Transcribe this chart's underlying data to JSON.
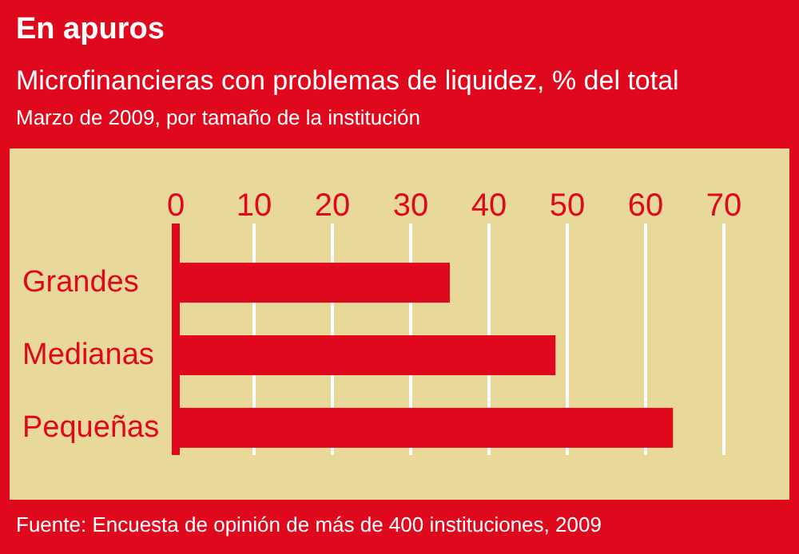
{
  "chart_data": {
    "type": "bar",
    "orientation": "horizontal",
    "title": "En apuros",
    "subtitle": "Microfinancieras con problemas de liquidez, % del total",
    "annotations": [
      "Marzo de 2009, por tamaño de la institución",
      "Fuente: Encuesta de opinión de más de 400 instituciones, 2009"
    ],
    "categories": [
      "Grandes",
      "Medianas",
      "Pequeñas"
    ],
    "values": [
      35,
      48.5,
      63.5
    ],
    "color": "#e0081c",
    "xlim": [
      0,
      70
    ],
    "xticks": [
      0,
      10,
      20,
      30,
      40,
      50,
      60,
      70
    ],
    "grid": "x"
  }
}
